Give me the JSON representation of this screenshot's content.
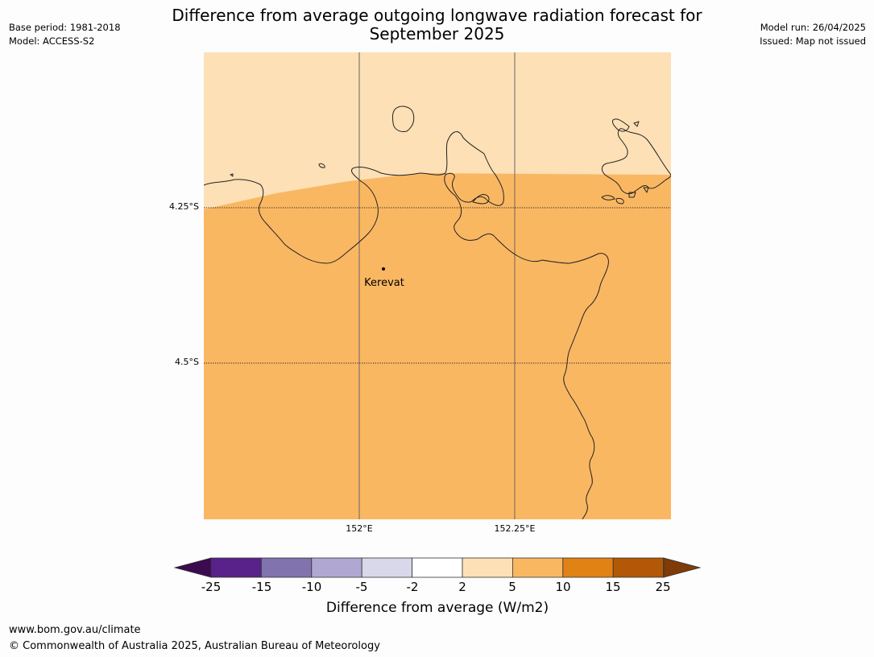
{
  "title": {
    "line1": "Difference from average outgoing longwave radiation forecast for",
    "line2": "September 2025"
  },
  "meta_left": {
    "base_period": "Base period: 1981-2018",
    "model": "Model: ACCESS-S2"
  },
  "meta_right": {
    "model_run": "Model run: 26/04/2025",
    "issued": "Issued: Map not issued"
  },
  "map": {
    "latitude_labels": [
      "4.25°S",
      "4.5°S"
    ],
    "longitude_labels": [
      "152°E",
      "152.25°E"
    ],
    "place": {
      "name": "Kerevat"
    },
    "region_category_north": "2 to 5",
    "region_category_south": "5 to 10"
  },
  "colorbar": {
    "title": "Difference from average (W/m2)",
    "ticks": [
      "-25",
      "-15",
      "-10",
      "-5",
      "-2",
      "2",
      "5",
      "10",
      "15",
      "25"
    ],
    "colors": {
      "under": "#3b0a4f",
      "bins": [
        "#58228a",
        "#8173ae",
        "#b0a8d2",
        "#d9d8ea",
        "#ffffff",
        "#fde0b6",
        "#fab762",
        "#e08214",
        "#b35806"
      ],
      "over": "#7f3b08"
    }
  },
  "footer": {
    "url": "www.bom.gov.au/climate",
    "copyright": "© Commonwealth of Australia 2025, Australian Bureau of Meteorology"
  }
}
